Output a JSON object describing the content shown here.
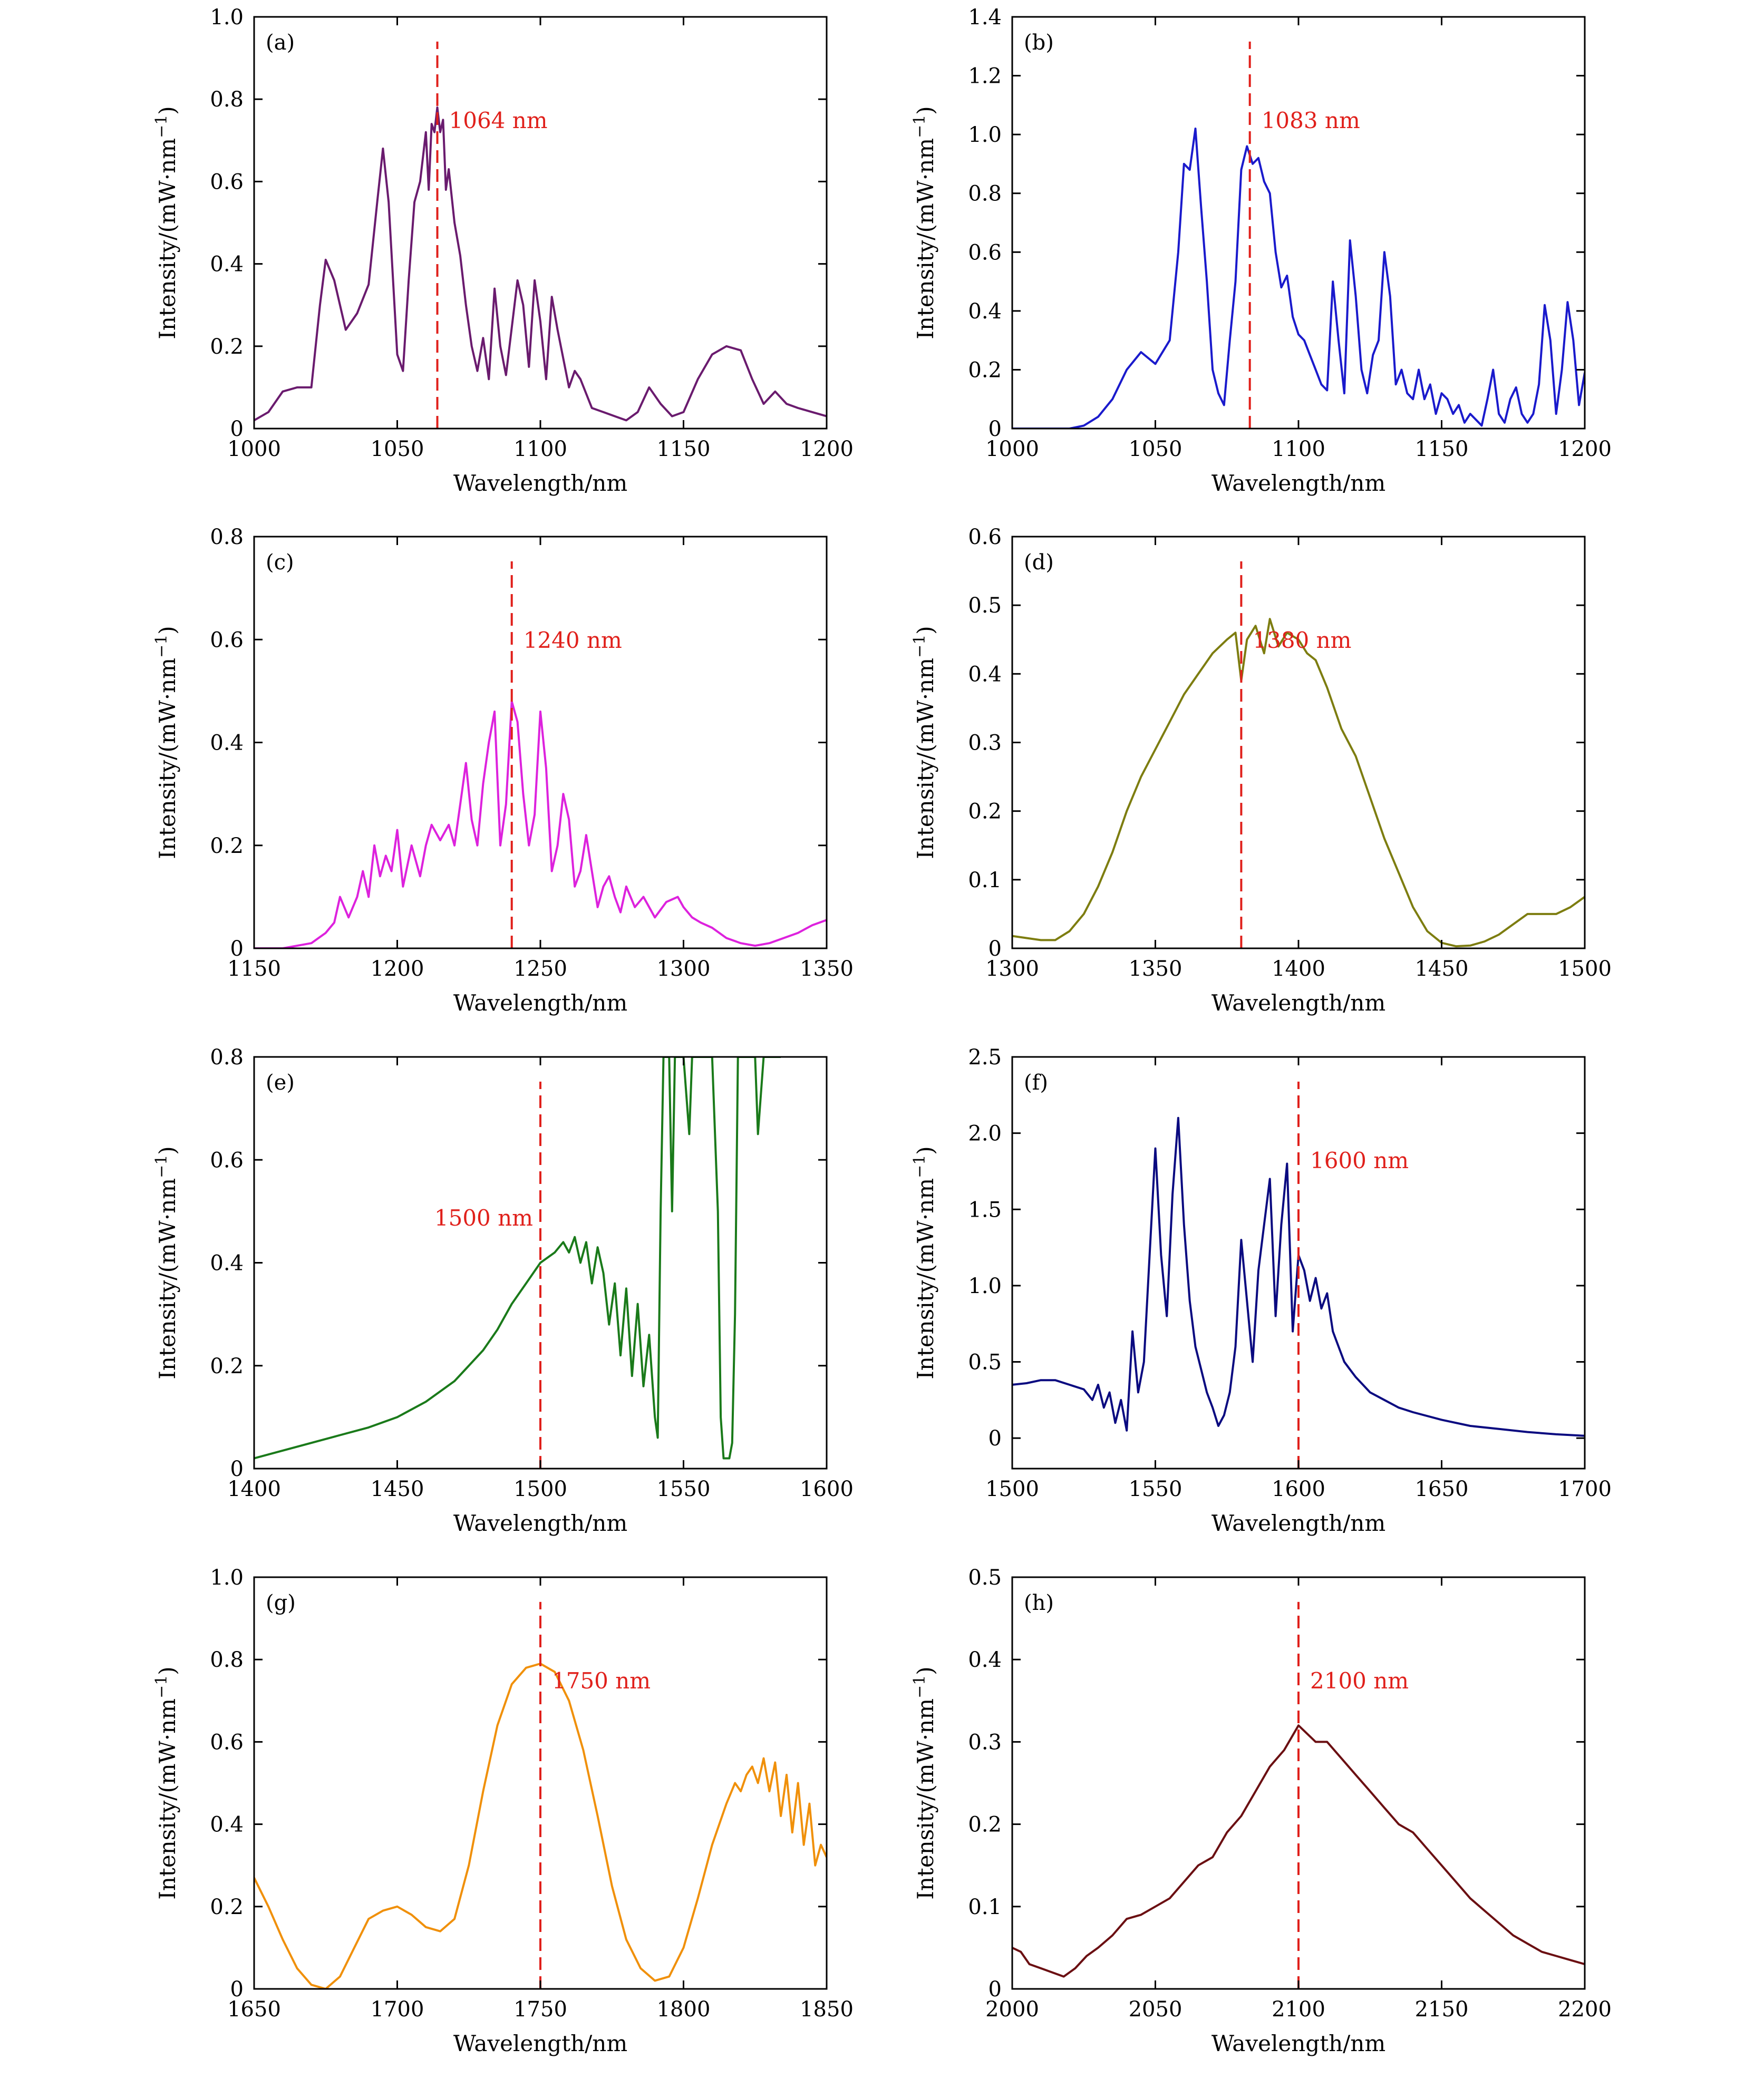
{
  "figure": {
    "x_axis_title": "Wavelength/nm",
    "y_axis_title_main": "Intensity/(mW·nm",
    "y_axis_title_sup": "−1",
    "y_axis_title_close": ")"
  },
  "chart_data": [
    {
      "type": "line",
      "panel": "(a)",
      "color": "#6a1b6e",
      "xlim": [
        1000,
        1200
      ],
      "ylim": [
        0,
        1.0
      ],
      "xticks": [
        1000,
        1050,
        1100,
        1150,
        1200
      ],
      "xtick_labels": [
        "1000",
        "1050",
        "1100",
        "1150",
        "1200"
      ],
      "yticks": [
        0,
        0.2,
        0.4,
        0.6,
        0.8,
        1.0
      ],
      "ytick_labels": [
        "0",
        "0.2",
        "0.4",
        "0.6",
        "0.8",
        "1.0"
      ],
      "marker_x": 1064,
      "marker_label": "1064 nm",
      "x": [
        1000,
        1005,
        1010,
        1015,
        1020,
        1023,
        1025,
        1028,
        1032,
        1036,
        1040,
        1043,
        1045,
        1047,
        1050,
        1052,
        1054,
        1056,
        1058,
        1060,
        1061,
        1062,
        1063,
        1064,
        1065,
        1066,
        1067,
        1068,
        1070,
        1072,
        1074,
        1076,
        1078,
        1080,
        1082,
        1084,
        1086,
        1088,
        1092,
        1094,
        1096,
        1098,
        1100,
        1102,
        1104,
        1106,
        1110,
        1112,
        1114,
        1118,
        1122,
        1126,
        1130,
        1134,
        1138,
        1142,
        1146,
        1150,
        1155,
        1160,
        1165,
        1170,
        1174,
        1178,
        1182,
        1186,
        1190,
        1195,
        1200
      ],
      "y": [
        0.02,
        0.04,
        0.09,
        0.1,
        0.1,
        0.3,
        0.41,
        0.36,
        0.24,
        0.28,
        0.35,
        0.55,
        0.68,
        0.55,
        0.18,
        0.14,
        0.36,
        0.55,
        0.6,
        0.72,
        0.58,
        0.74,
        0.72,
        0.78,
        0.72,
        0.75,
        0.58,
        0.63,
        0.5,
        0.42,
        0.3,
        0.2,
        0.14,
        0.22,
        0.12,
        0.34,
        0.2,
        0.13,
        0.36,
        0.3,
        0.15,
        0.36,
        0.26,
        0.12,
        0.32,
        0.24,
        0.1,
        0.14,
        0.12,
        0.05,
        0.04,
        0.03,
        0.02,
        0.04,
        0.1,
        0.06,
        0.03,
        0.04,
        0.12,
        0.18,
        0.2,
        0.19,
        0.12,
        0.06,
        0.09,
        0.06,
        0.05,
        0.04,
        0.03
      ]
    },
    {
      "type": "line",
      "panel": "(b)",
      "color": "#1a1acc",
      "xlim": [
        1000,
        1200
      ],
      "ylim": [
        0,
        1.4
      ],
      "xticks": [
        1000,
        1050,
        1100,
        1150,
        1200
      ],
      "xtick_labels": [
        "1000",
        "1050",
        "1100",
        "1150",
        "1200"
      ],
      "yticks": [
        0,
        0.2,
        0.4,
        0.6,
        0.8,
        1.0,
        1.2,
        1.4
      ],
      "ytick_labels": [
        "0",
        "0.2",
        "0.4",
        "0.6",
        "0.8",
        "1.0",
        "1.2",
        "1.4"
      ],
      "marker_x": 1083,
      "marker_label": "1083 nm",
      "x": [
        1000,
        1020,
        1025,
        1030,
        1035,
        1040,
        1045,
        1050,
        1055,
        1058,
        1060,
        1062,
        1064,
        1066,
        1068,
        1070,
        1072,
        1074,
        1076,
        1078,
        1080,
        1082,
        1084,
        1086,
        1088,
        1090,
        1092,
        1094,
        1096,
        1098,
        1100,
        1102,
        1104,
        1106,
        1108,
        1110,
        1112,
        1114,
        1116,
        1118,
        1120,
        1122,
        1124,
        1126,
        1128,
        1130,
        1132,
        1134,
        1136,
        1138,
        1140,
        1142,
        1144,
        1146,
        1148,
        1150,
        1152,
        1154,
        1156,
        1158,
        1160,
        1162,
        1164,
        1166,
        1168,
        1170,
        1172,
        1174,
        1176,
        1178,
        1180,
        1182,
        1184,
        1186,
        1188,
        1190,
        1192,
        1194,
        1196,
        1198,
        1200
      ],
      "y": [
        0,
        0,
        0.01,
        0.04,
        0.1,
        0.2,
        0.26,
        0.22,
        0.3,
        0.6,
        0.9,
        0.88,
        1.02,
        0.75,
        0.5,
        0.2,
        0.12,
        0.08,
        0.3,
        0.5,
        0.88,
        0.96,
        0.9,
        0.92,
        0.84,
        0.8,
        0.6,
        0.48,
        0.52,
        0.38,
        0.32,
        0.3,
        0.25,
        0.2,
        0.15,
        0.13,
        0.5,
        0.3,
        0.12,
        0.64,
        0.45,
        0.2,
        0.12,
        0.25,
        0.3,
        0.6,
        0.45,
        0.15,
        0.2,
        0.12,
        0.1,
        0.2,
        0.1,
        0.15,
        0.05,
        0.12,
        0.1,
        0.05,
        0.08,
        0.02,
        0.05,
        0.03,
        0.01,
        0.1,
        0.2,
        0.05,
        0.02,
        0.1,
        0.14,
        0.05,
        0.02,
        0.05,
        0.15,
        0.42,
        0.3,
        0.05,
        0.2,
        0.43,
        0.3,
        0.08,
        0.19
      ]
    },
    {
      "type": "line",
      "panel": "(c)",
      "color": "#dd22dd",
      "xlim": [
        1150,
        1350
      ],
      "ylim": [
        0,
        0.8
      ],
      "xticks": [
        1150,
        1200,
        1250,
        1300,
        1350
      ],
      "xtick_labels": [
        "1150",
        "1200",
        "1250",
        "1300",
        "1350"
      ],
      "yticks": [
        0,
        0.2,
        0.4,
        0.6,
        0.8
      ],
      "ytick_labels": [
        "0",
        "0.2",
        "0.4",
        "0.6",
        "0.8"
      ],
      "marker_x": 1240,
      "marker_label": "1240 nm",
      "x": [
        1150,
        1160,
        1170,
        1175,
        1178,
        1180,
        1183,
        1186,
        1188,
        1190,
        1192,
        1194,
        1196,
        1198,
        1200,
        1202,
        1205,
        1208,
        1210,
        1212,
        1215,
        1218,
        1220,
        1222,
        1224,
        1226,
        1228,
        1230,
        1232,
        1234,
        1236,
        1238,
        1240,
        1242,
        1244,
        1246,
        1248,
        1250,
        1252,
        1254,
        1256,
        1258,
        1260,
        1262,
        1264,
        1266,
        1268,
        1270,
        1272,
        1274,
        1276,
        1278,
        1280,
        1283,
        1286,
        1290,
        1294,
        1298,
        1300,
        1303,
        1306,
        1310,
        1315,
        1320,
        1325,
        1330,
        1335,
        1340,
        1345,
        1350
      ],
      "y": [
        0,
        0,
        0.01,
        0.03,
        0.05,
        0.1,
        0.06,
        0.1,
        0.15,
        0.1,
        0.2,
        0.14,
        0.18,
        0.15,
        0.23,
        0.12,
        0.2,
        0.14,
        0.2,
        0.24,
        0.21,
        0.24,
        0.2,
        0.28,
        0.36,
        0.25,
        0.2,
        0.32,
        0.4,
        0.46,
        0.2,
        0.28,
        0.48,
        0.44,
        0.3,
        0.2,
        0.26,
        0.46,
        0.35,
        0.15,
        0.2,
        0.3,
        0.25,
        0.12,
        0.15,
        0.22,
        0.15,
        0.08,
        0.12,
        0.14,
        0.1,
        0.07,
        0.12,
        0.08,
        0.1,
        0.06,
        0.09,
        0.1,
        0.08,
        0.06,
        0.05,
        0.04,
        0.02,
        0.01,
        0.005,
        0.01,
        0.02,
        0.03,
        0.045,
        0.055
      ]
    },
    {
      "type": "line",
      "panel": "(d)",
      "color": "#7d7d10",
      "xlim": [
        1300,
        1500
      ],
      "ylim": [
        0,
        0.6
      ],
      "xticks": [
        1300,
        1350,
        1400,
        1450,
        1500
      ],
      "xtick_labels": [
        "1300",
        "1350",
        "1400",
        "1450",
        "1500"
      ],
      "yticks": [
        0,
        0.1,
        0.2,
        0.3,
        0.4,
        0.5,
        0.6
      ],
      "ytick_labels": [
        "0",
        "0.1",
        "0.2",
        "0.3",
        "0.4",
        "0.5",
        "0.6"
      ],
      "marker_x": 1380,
      "marker_label": "1380 nm",
      "x": [
        1300,
        1305,
        1310,
        1315,
        1320,
        1325,
        1330,
        1335,
        1340,
        1345,
        1350,
        1355,
        1360,
        1365,
        1370,
        1375,
        1378,
        1380,
        1382,
        1385,
        1388,
        1390,
        1393,
        1396,
        1400,
        1403,
        1406,
        1410,
        1415,
        1420,
        1425,
        1430,
        1435,
        1440,
        1445,
        1450,
        1455,
        1460,
        1465,
        1470,
        1475,
        1480,
        1485,
        1490,
        1495,
        1500
      ],
      "y": [
        0.018,
        0.015,
        0.012,
        0.012,
        0.025,
        0.05,
        0.09,
        0.14,
        0.2,
        0.25,
        0.29,
        0.33,
        0.37,
        0.4,
        0.43,
        0.45,
        0.46,
        0.39,
        0.45,
        0.47,
        0.43,
        0.48,
        0.44,
        0.46,
        0.45,
        0.43,
        0.42,
        0.38,
        0.32,
        0.28,
        0.22,
        0.16,
        0.11,
        0.06,
        0.025,
        0.008,
        0.003,
        0.004,
        0.01,
        0.02,
        0.035,
        0.05,
        0.05,
        0.05,
        0.06,
        0.075
      ]
    },
    {
      "type": "line",
      "panel": "(e)",
      "color": "#1a7a1a",
      "xlim": [
        1400,
        1600
      ],
      "ylim": [
        0,
        0.8
      ],
      "xticks": [
        1400,
        1450,
        1500,
        1550,
        1600
      ],
      "xtick_labels": [
        "1400",
        "1450",
        "1500",
        "1550",
        "1600"
      ],
      "yticks": [
        0,
        0.2,
        0.4,
        0.6,
        0.8
      ],
      "ytick_labels": [
        "0",
        "0.2",
        "0.4",
        "0.6",
        "0.8"
      ],
      "marker_x": 1500,
      "marker_label": "1500 nm",
      "x": [
        1400,
        1410,
        1420,
        1430,
        1440,
        1450,
        1460,
        1470,
        1475,
        1480,
        1485,
        1490,
        1495,
        1500,
        1505,
        1508,
        1510,
        1512,
        1514,
        1516,
        1518,
        1520,
        1522,
        1524,
        1526,
        1528,
        1530,
        1532,
        1534,
        1536,
        1538,
        1540,
        1541,
        1542,
        1543,
        1544,
        1545,
        1546,
        1547,
        1548,
        1549,
        1550,
        1552,
        1553,
        1554,
        1555,
        1556,
        1558,
        1560,
        1562,
        1563,
        1564,
        1565,
        1566,
        1567,
        1568,
        1569,
        1570,
        1571,
        1572,
        1573,
        1574,
        1575,
        1576,
        1578,
        1580,
        1582,
        1584
      ],
      "y": [
        0.02,
        0.035,
        0.05,
        0.065,
        0.08,
        0.1,
        0.13,
        0.17,
        0.2,
        0.23,
        0.27,
        0.32,
        0.36,
        0.4,
        0.42,
        0.44,
        0.42,
        0.45,
        0.4,
        0.44,
        0.36,
        0.43,
        0.38,
        0.28,
        0.36,
        0.22,
        0.35,
        0.18,
        0.32,
        0.16,
        0.26,
        0.1,
        0.06,
        0.5,
        0.8,
        0.8,
        0.8,
        0.5,
        0.8,
        0.8,
        0.8,
        0.8,
        0.65,
        0.8,
        0.8,
        0.8,
        0.8,
        0.8,
        0.8,
        0.5,
        0.1,
        0.02,
        0.02,
        0.02,
        0.05,
        0.3,
        0.8,
        0.8,
        0.8,
        0.8,
        0.8,
        0.8,
        0.8,
        0.65,
        0.8,
        0.8,
        0.8,
        0.8
      ]
    },
    {
      "type": "line",
      "panel": "(f)",
      "color": "#0a0a80",
      "xlim": [
        1500,
        1700
      ],
      "ylim": [
        -0.2,
        2.5
      ],
      "xticks": [
        1500,
        1550,
        1600,
        1650,
        1700
      ],
      "xtick_labels": [
        "1500",
        "1550",
        "1600",
        "1650",
        "1700"
      ],
      "yticks": [
        0,
        0.5,
        1.0,
        1.5,
        2.0,
        2.5
      ],
      "ytick_labels": [
        "0",
        "0.5",
        "1.0",
        "1.5",
        "2.0",
        "2.5"
      ],
      "marker_x": 1600,
      "marker_label": "1600 nm",
      "x": [
        1500,
        1505,
        1510,
        1515,
        1520,
        1525,
        1528,
        1530,
        1532,
        1534,
        1536,
        1538,
        1540,
        1542,
        1544,
        1546,
        1548,
        1550,
        1552,
        1554,
        1556,
        1558,
        1560,
        1562,
        1564,
        1566,
        1568,
        1570,
        1572,
        1574,
        1576,
        1578,
        1580,
        1582,
        1584,
        1586,
        1588,
        1590,
        1592,
        1594,
        1596,
        1598,
        1600,
        1602,
        1604,
        1606,
        1608,
        1610,
        1612,
        1614,
        1616,
        1618,
        1620,
        1625,
        1630,
        1635,
        1640,
        1650,
        1660,
        1670,
        1680,
        1690,
        1700
      ],
      "y": [
        0.35,
        0.36,
        0.38,
        0.38,
        0.35,
        0.32,
        0.25,
        0.35,
        0.2,
        0.3,
        0.1,
        0.25,
        0.05,
        0.7,
        0.3,
        0.5,
        1.2,
        1.9,
        1.2,
        0.8,
        1.6,
        2.1,
        1.4,
        0.9,
        0.6,
        0.45,
        0.3,
        0.2,
        0.08,
        0.15,
        0.3,
        0.6,
        1.3,
        0.9,
        0.5,
        1.1,
        1.4,
        1.7,
        0.8,
        1.4,
        1.8,
        0.7,
        1.2,
        1.1,
        0.9,
        1.05,
        0.85,
        0.95,
        0.7,
        0.6,
        0.5,
        0.45,
        0.4,
        0.3,
        0.25,
        0.2,
        0.17,
        0.12,
        0.08,
        0.06,
        0.04,
        0.025,
        0.015
      ]
    },
    {
      "type": "line",
      "panel": "(g)",
      "color": "#f0900a",
      "xlim": [
        1650,
        1850
      ],
      "ylim": [
        0,
        1.0
      ],
      "xticks": [
        1650,
        1700,
        1750,
        1800,
        1850
      ],
      "xtick_labels": [
        "1650",
        "1700",
        "1750",
        "1800",
        "1850"
      ],
      "yticks": [
        0,
        0.2,
        0.4,
        0.6,
        0.8,
        1.0
      ],
      "ytick_labels": [
        "0",
        "0.2",
        "0.4",
        "0.6",
        "0.8",
        "1.0"
      ],
      "marker_x": 1750,
      "marker_label": "1750 nm",
      "x": [
        1650,
        1655,
        1660,
        1665,
        1670,
        1675,
        1680,
        1685,
        1690,
        1695,
        1700,
        1705,
        1710,
        1715,
        1720,
        1725,
        1730,
        1735,
        1740,
        1745,
        1750,
        1755,
        1760,
        1765,
        1770,
        1775,
        1780,
        1785,
        1790,
        1795,
        1800,
        1805,
        1810,
        1815,
        1818,
        1820,
        1822,
        1824,
        1826,
        1828,
        1830,
        1832,
        1834,
        1836,
        1838,
        1840,
        1842,
        1844,
        1846,
        1848,
        1850
      ],
      "y": [
        0.27,
        0.2,
        0.12,
        0.05,
        0.01,
        0.0,
        0.03,
        0.1,
        0.17,
        0.19,
        0.2,
        0.18,
        0.15,
        0.14,
        0.17,
        0.3,
        0.48,
        0.64,
        0.74,
        0.78,
        0.79,
        0.77,
        0.7,
        0.58,
        0.42,
        0.25,
        0.12,
        0.05,
        0.02,
        0.03,
        0.1,
        0.22,
        0.35,
        0.45,
        0.5,
        0.48,
        0.52,
        0.54,
        0.5,
        0.56,
        0.48,
        0.55,
        0.42,
        0.52,
        0.38,
        0.5,
        0.35,
        0.45,
        0.3,
        0.35,
        0.32
      ]
    },
    {
      "type": "line",
      "panel": "(h)",
      "color": "#6b0f12",
      "xlim": [
        2000,
        2200
      ],
      "ylim": [
        0,
        0.5
      ],
      "xticks": [
        2000,
        2050,
        2100,
        2150,
        2200
      ],
      "xtick_labels": [
        "2000",
        "2050",
        "2100",
        "2150",
        "2200"
      ],
      "yticks": [
        0,
        0.1,
        0.2,
        0.3,
        0.4,
        0.5
      ],
      "ytick_labels": [
        "0",
        "0.1",
        "0.2",
        "0.3",
        "0.4",
        "0.5"
      ],
      "marker_x": 2100,
      "marker_label": "2100 nm",
      "x": [
        2000,
        2003,
        2006,
        2010,
        2014,
        2018,
        2022,
        2026,
        2030,
        2035,
        2040,
        2045,
        2050,
        2055,
        2060,
        2065,
        2070,
        2075,
        2080,
        2085,
        2090,
        2095,
        2100,
        2103,
        2106,
        2110,
        2115,
        2120,
        2125,
        2130,
        2135,
        2140,
        2145,
        2150,
        2155,
        2160,
        2165,
        2170,
        2175,
        2180,
        2185,
        2190,
        2195,
        2200
      ],
      "y": [
        0.05,
        0.045,
        0.03,
        0.025,
        0.02,
        0.015,
        0.025,
        0.04,
        0.05,
        0.065,
        0.085,
        0.09,
        0.1,
        0.11,
        0.13,
        0.15,
        0.16,
        0.19,
        0.21,
        0.24,
        0.27,
        0.29,
        0.32,
        0.31,
        0.3,
        0.3,
        0.28,
        0.26,
        0.24,
        0.22,
        0.2,
        0.19,
        0.17,
        0.15,
        0.13,
        0.11,
        0.095,
        0.08,
        0.065,
        0.055,
        0.045,
        0.04,
        0.035,
        0.03
      ]
    }
  ]
}
